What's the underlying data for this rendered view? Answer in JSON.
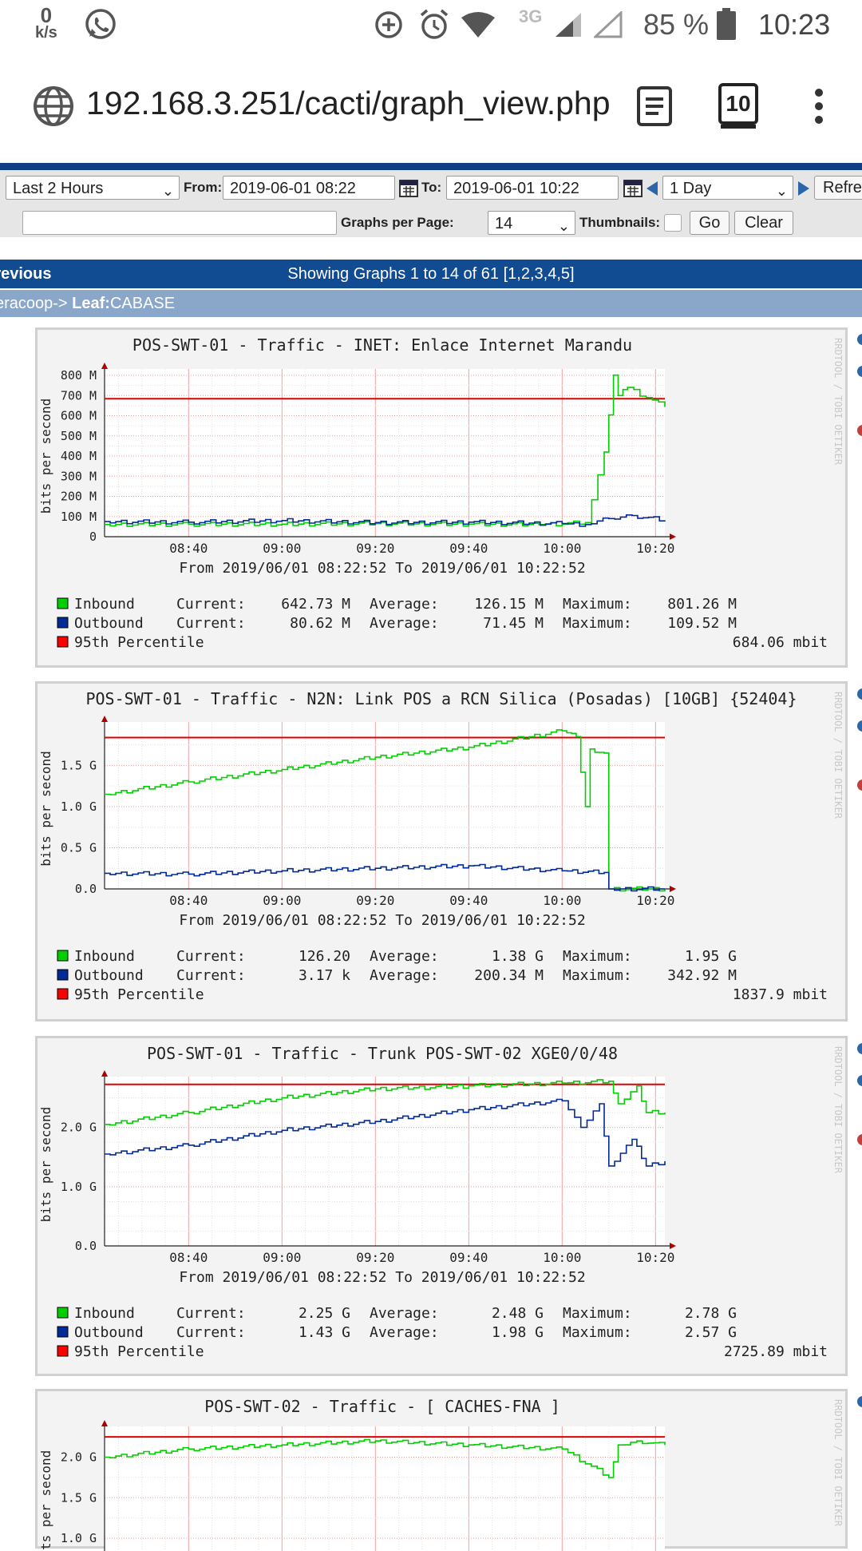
{
  "status_bar": {
    "net_speed": "0",
    "net_unit": "k/s",
    "network": "3G",
    "battery": "85 %",
    "time": "10:23"
  },
  "browser": {
    "url": "192.168.3.251/cacti/graph_view.php",
    "tab_count": "10"
  },
  "filter": {
    "preset": "Last 2 Hours",
    "from_label": "From:",
    "from_value": "2019-06-01 08:22",
    "to_label": "To:",
    "to_value": "2019-06-01 10:22",
    "span": "1 Day",
    "refresh_label": "Refresh",
    "search_value": "",
    "graphs_per_page_label": "Graphs per Page:",
    "graphs_per_page": "14",
    "thumbnails_label": "Thumbnails:",
    "go_label": "Go",
    "clear_label": "Clear"
  },
  "nav": {
    "previous": "Previous",
    "showing": "Showing Graphs 1 to 14 of 61 [1,2,3,4,5]"
  },
  "breadcrumb": {
    "prefix": "eracoop-> ",
    "leaf_label": "Leaf:",
    "leaf_value": "CABASE"
  },
  "watermark": "RRDTOOL / TOBI OETIKER",
  "graphs": [
    {
      "title": "POS-SWT-01 - Traffic - INET: Enlace Internet Marandu",
      "ylabel": "bits per second",
      "date_range": "From 2019/06/01 08:22:52 To 2019/06/01 10:22:52",
      "x_ticks": [
        "08:40",
        "09:00",
        "09:20",
        "09:40",
        "10:00",
        "10:20"
      ],
      "y_ticks": [
        "0",
        "100 M",
        "200 M",
        "300 M",
        "400 M",
        "500 M",
        "600 M",
        "700 M",
        "800 M"
      ],
      "legend": [
        {
          "name": "Inbound",
          "color": "#00cf00",
          "current": "642.73 M",
          "average": "126.15 M",
          "maximum": "801.26 M"
        },
        {
          "name": "Outbound",
          "color": "#002a97",
          "current": "80.62 M",
          "average": "71.45 M",
          "maximum": "109.52 M"
        }
      ],
      "percentile_label": "95th Percentile",
      "percentile_value": "684.06 mbit"
    },
    {
      "title": "POS-SWT-01 - Traffic - N2N: Link POS a RCN Silica (Posadas) [10GB] {52404}",
      "ylabel": "bits per second",
      "date_range": "From 2019/06/01 08:22:52 To 2019/06/01 10:22:52",
      "x_ticks": [
        "08:40",
        "09:00",
        "09:20",
        "09:40",
        "10:00",
        "10:20"
      ],
      "y_ticks": [
        "0.0",
        "0.5 G",
        "1.0 G",
        "1.5 G"
      ],
      "legend": [
        {
          "name": "Inbound",
          "color": "#00cf00",
          "current": "126.20",
          "average": "1.38 G",
          "maximum": "1.95 G"
        },
        {
          "name": "Outbound",
          "color": "#002a97",
          "current": "3.17 k",
          "average": "200.34 M",
          "maximum": "342.92 M"
        }
      ],
      "percentile_label": "95th Percentile",
      "percentile_value": "1837.9 mbit"
    },
    {
      "title": "POS-SWT-01 - Traffic - Trunk POS-SWT-02 XGE0/0/48",
      "ylabel": "bits per second",
      "date_range": "From 2019/06/01 08:22:52 To 2019/06/01 10:22:52",
      "x_ticks": [
        "08:40",
        "09:00",
        "09:20",
        "09:40",
        "10:00",
        "10:20"
      ],
      "y_ticks": [
        "0.0",
        "1.0 G",
        "2.0 G"
      ],
      "legend": [
        {
          "name": "Inbound",
          "color": "#00cf00",
          "current": "2.25 G",
          "average": "2.48 G",
          "maximum": "2.78 G"
        },
        {
          "name": "Outbound",
          "color": "#002a97",
          "current": "1.43 G",
          "average": "1.98 G",
          "maximum": "2.57 G"
        }
      ],
      "percentile_label": "95th Percentile",
      "percentile_value": "2725.89 mbit"
    },
    {
      "title": "POS-SWT-02 - Traffic - [ CACHES-FNA ]",
      "ylabel": "bits per second",
      "y_ticks": [
        "1.0 G",
        "1.5 G",
        "2.0 G"
      ]
    }
  ],
  "chart_data": [
    {
      "type": "line",
      "title": "POS-SWT-01 - Traffic - INET: Enlace Internet Marandu",
      "ylabel": "bits per second",
      "y_unit": "M",
      "ylim": [
        0,
        800
      ],
      "x_minutes_range": [
        "08:22",
        "10:22"
      ],
      "percentile_95": 684.06,
      "series": [
        {
          "name": "Inbound",
          "x": [
            "08:22",
            "08:40",
            "09:00",
            "09:20",
            "09:40",
            "09:55",
            "10:05",
            "10:09",
            "10:11",
            "10:12",
            "10:14",
            "10:18",
            "10:22"
          ],
          "values": [
            60,
            62,
            62,
            65,
            62,
            60,
            70,
            420,
            801,
            700,
            740,
            690,
            643
          ]
        },
        {
          "name": "Outbound",
          "x": [
            "08:22",
            "08:40",
            "09:00",
            "09:20",
            "09:40",
            "10:00",
            "10:05",
            "10:10",
            "10:15",
            "10:22"
          ],
          "values": [
            75,
            72,
            80,
            70,
            72,
            65,
            60,
            90,
            105,
            81
          ]
        }
      ]
    },
    {
      "type": "line",
      "title": "POS-SWT-01 - Traffic - N2N: Link POS a RCN Silica (Posadas) [10GB] {52404}",
      "ylabel": "bits per second",
      "y_unit": "G",
      "ylim": [
        0,
        1.95
      ],
      "percentile_95": 1.8379,
      "series": [
        {
          "name": "Inbound",
          "x": [
            "08:22",
            "08:40",
            "09:00",
            "09:20",
            "09:40",
            "10:00",
            "10:03",
            "10:05",
            "10:06",
            "10:09",
            "10:10",
            "10:22"
          ],
          "values": [
            1.15,
            1.3,
            1.45,
            1.6,
            1.72,
            1.92,
            1.85,
            1.0,
            1.7,
            1.65,
            0.0,
            0.0
          ]
        },
        {
          "name": "Outbound",
          "x": [
            "08:22",
            "08:40",
            "09:00",
            "09:20",
            "09:40",
            "10:00",
            "10:09",
            "10:10",
            "10:22"
          ],
          "values": [
            0.19,
            0.18,
            0.22,
            0.25,
            0.28,
            0.22,
            0.2,
            0.0,
            0.0
          ]
        }
      ]
    },
    {
      "type": "line",
      "title": "POS-SWT-01 - Traffic - Trunk POS-SWT-02 XGE0/0/48",
      "ylabel": "bits per second",
      "y_unit": "G",
      "ylim": [
        0,
        2.8
      ],
      "percentile_95": 2.72589,
      "series": [
        {
          "name": "Inbound",
          "x": [
            "08:22",
            "08:40",
            "09:00",
            "09:20",
            "09:40",
            "10:00",
            "10:10",
            "10:12",
            "10:16",
            "10:18",
            "10:22"
          ],
          "values": [
            2.05,
            2.25,
            2.5,
            2.65,
            2.7,
            2.75,
            2.78,
            2.4,
            2.7,
            2.25,
            2.25
          ]
        },
        {
          "name": "Outbound",
          "x": [
            "08:22",
            "08:40",
            "09:00",
            "09:20",
            "09:40",
            "10:00",
            "10:04",
            "10:08",
            "10:10",
            "10:15",
            "10:18",
            "10:22"
          ],
          "values": [
            1.55,
            1.7,
            1.95,
            2.1,
            2.3,
            2.45,
            2.0,
            2.4,
            1.35,
            1.8,
            1.35,
            1.43
          ]
        }
      ]
    },
    {
      "type": "line",
      "title": "POS-SWT-02 - Traffic - [ CACHES-FNA ]",
      "ylabel": "bits per second",
      "y_unit": "G",
      "percentile_95": 2.25,
      "series": [
        {
          "name": "Inbound",
          "x": [
            "08:22",
            "08:40",
            "09:00",
            "09:20",
            "09:40",
            "10:00",
            "10:10",
            "10:12",
            "10:16",
            "10:22"
          ],
          "values": [
            2.0,
            2.1,
            2.15,
            2.2,
            2.15,
            2.1,
            1.75,
            2.15,
            2.2,
            2.15
          ]
        }
      ]
    }
  ]
}
